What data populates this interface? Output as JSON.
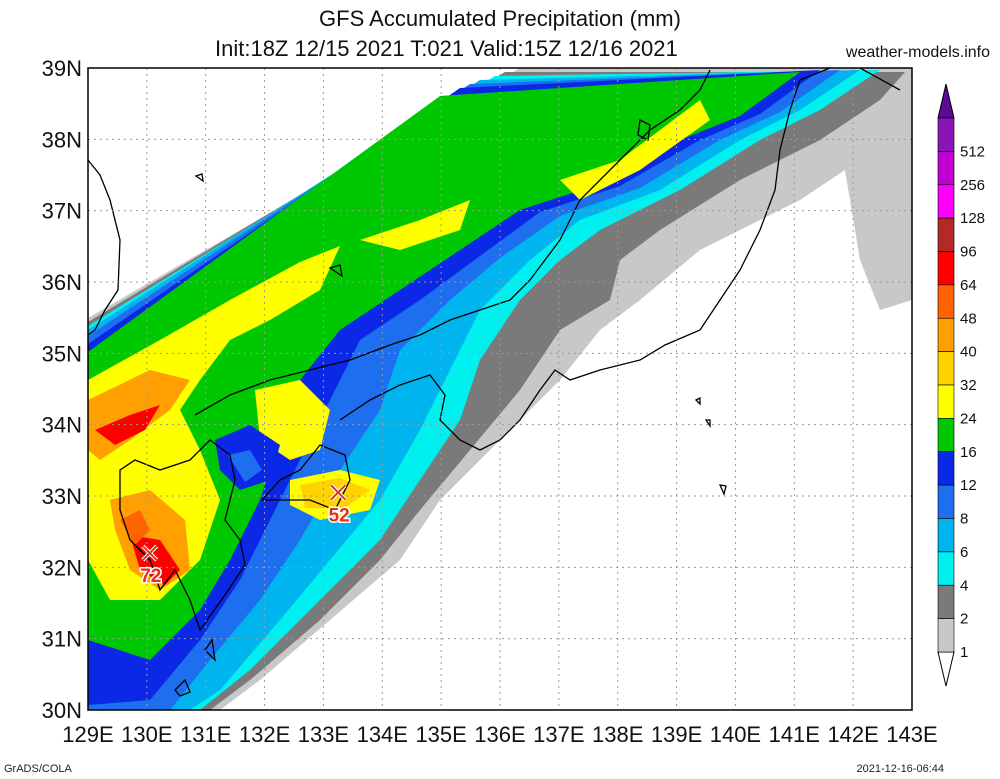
{
  "title": {
    "line1": "GFS Accumulated Precipitation (mm)",
    "line2": "Init:18Z 12/15 2021 T:021 Valid:15Z 12/16 2021"
  },
  "source_label": "weather-models.info",
  "footer": {
    "left": "GrADS/COLA",
    "right": "2021-12-16-06:44"
  },
  "axes": {
    "lat_labels": [
      "30N",
      "31N",
      "32N",
      "33N",
      "34N",
      "35N",
      "36N",
      "37N",
      "38N",
      "39N"
    ],
    "lon_labels": [
      "129E",
      "130E",
      "131E",
      "132E",
      "133E",
      "134E",
      "135E",
      "136E",
      "137E",
      "138E",
      "139E",
      "140E",
      "141E",
      "142E",
      "143E"
    ]
  },
  "colorbar": {
    "levels": [
      {
        "label": "1",
        "color": "#c8c8c8"
      },
      {
        "label": "2",
        "color": "#7a7a7a"
      },
      {
        "label": "4",
        "color": "#00f0f0"
      },
      {
        "label": "6",
        "color": "#00b4f0"
      },
      {
        "label": "8",
        "color": "#1e6ef0"
      },
      {
        "label": "12",
        "color": "#0a28e6"
      },
      {
        "label": "16",
        "color": "#00c800"
      },
      {
        "label": "24",
        "color": "#ffff00"
      },
      {
        "label": "32",
        "color": "#ffd200"
      },
      {
        "label": "40",
        "color": "#ffa000"
      },
      {
        "label": "48",
        "color": "#ff6400"
      },
      {
        "label": "64",
        "color": "#ff0000"
      },
      {
        "label": "96",
        "color": "#b42828"
      },
      {
        "label": "128",
        "color": "#ff00ff"
      },
      {
        "label": "256",
        "color": "#c000d0"
      },
      {
        "label": "512",
        "color": "#8a14b4"
      }
    ],
    "top_arrow_color": "#5a0a96"
  },
  "markers": [
    {
      "value": "72",
      "lon": 130.05,
      "lat": 32.2
    },
    {
      "value": "52",
      "lon": 133.25,
      "lat": 33.05
    }
  ]
}
